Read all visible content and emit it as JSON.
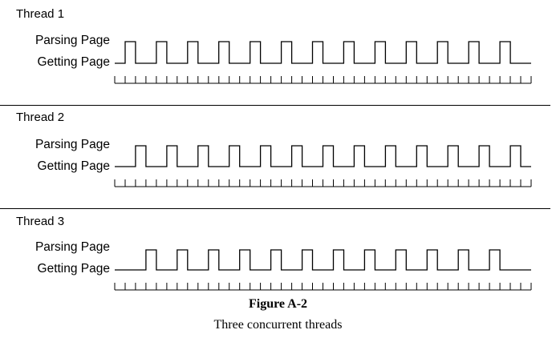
{
  "threads": [
    {
      "title": "Thread 1",
      "high_label": "Parsing Page",
      "low_label": "Getting Page",
      "pulse_count": 13,
      "initial_low_ticks": 1
    },
    {
      "title": "Thread 2",
      "high_label": "Parsing Page",
      "low_label": "Getting Page",
      "pulse_count": 13,
      "initial_low_ticks": 2
    },
    {
      "title": "Thread 3",
      "high_label": "Parsing Page",
      "low_label": "Getting Page",
      "pulse_count": 12,
      "initial_low_ticks": 3
    }
  ],
  "timeline": {
    "tick_count": 40
  },
  "caption": {
    "number": "Figure A-2",
    "description": "Three concurrent threads"
  }
}
